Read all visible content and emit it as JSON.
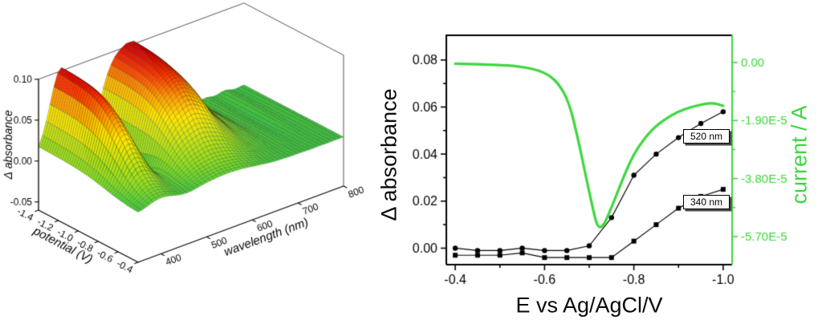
{
  "figure": {
    "background": "#ffffff",
    "description_left_panel": "3D surface of delta absorbance vs potential and wavelength",
    "description_right_panel": "Dual-axis plot of delta absorbance (340 nm, 520 nm) and current vs potential"
  },
  "chart_data": [
    {
      "type": "surface3d",
      "zlabel": "Δ absorbance",
      "xlabel": "potential (V)",
      "ylabel": "wavelength (nm)",
      "x_range": [
        -1.4,
        -0.4
      ],
      "x_ticks": [
        -1.4,
        -1.2,
        -1.0,
        -0.8,
        -0.6,
        -0.4
      ],
      "x_tick_labels": [
        "-1.4",
        "-1.2",
        "-1.0",
        "-0.8",
        "-0.6",
        "-0.4"
      ],
      "y_range": [
        350,
        800
      ],
      "y_ticks": [
        400,
        500,
        600,
        700,
        800
      ],
      "y_tick_labels": [
        "400",
        "500",
        "600",
        "700",
        "800"
      ],
      "z_range": [
        -0.06,
        0.1
      ],
      "z_ticks": [
        -0.05,
        0.0,
        0.05,
        0.1
      ],
      "z_tick_labels": [
        "-0.05",
        "0.00",
        "0.05",
        "0.10"
      ],
      "surface_model": {
        "description": "Gaussian absorbance bands growing sigmoidally at negative potentials; negative bleaching band near 460 nm; flat zero plane above 650 nm and at low overpotential",
        "peaks": [
          {
            "center_nm": 400,
            "sigma_nm": 26,
            "amplitude": 0.1,
            "onset_V": -0.72,
            "width_V": 0.13
          },
          {
            "center_nm": 545,
            "sigma_nm": 58,
            "amplitude": 0.105,
            "onset_V": -0.72,
            "width_V": 0.13
          },
          {
            "center_nm": 462,
            "sigma_nm": 14,
            "amplitude": -0.07,
            "onset_V": -0.85,
            "width_V": 0.1
          }
        ],
        "ripple": 0.002
      },
      "colormap": [
        [
          -0.06,
          "#2020c0"
        ],
        [
          -0.035,
          "#00a6ff"
        ],
        [
          -0.015,
          "#00e0d0"
        ],
        [
          0.0,
          "#3ecb3e"
        ],
        [
          0.018,
          "#8fdc1f"
        ],
        [
          0.04,
          "#cfe414"
        ],
        [
          0.058,
          "#ffe400"
        ],
        [
          0.075,
          "#ff9a00"
        ],
        [
          0.09,
          "#ff3c00"
        ],
        [
          0.104,
          "#d40000"
        ]
      ]
    },
    {
      "type": "line",
      "xlabel": "E vs  Ag/AgCl/V",
      "ylabel_left": "Δ absorbance",
      "ylabel_right": "current / A",
      "x_direction": "reversed",
      "xlim": [
        -0.38,
        -1.02
      ],
      "ylim_left": [
        -0.007,
        0.0905
      ],
      "ylim_right": [
        8.9e-06,
        -6.62e-05
      ],
      "x_ticks": [
        -0.4,
        -0.6,
        -0.8,
        -1.0
      ],
      "x_tick_labels": [
        "-0.4",
        "-0.6",
        "-0.8",
        "-1.0"
      ],
      "x_minor": [
        -0.5,
        -0.7,
        -0.9
      ],
      "y_ticks_left": [
        0.0,
        0.02,
        0.04,
        0.06,
        0.08
      ],
      "y_tick_labels_left": [
        "0.00",
        "0.02",
        "0.04",
        "0.06",
        "0.08"
      ],
      "y_minor_left": [
        0.01,
        0.03,
        0.05,
        0.07
      ],
      "y_ticks_right": [
        0,
        -1.9e-05,
        -3.8e-05,
        -5.7e-05
      ],
      "y_tick_labels_right": [
        "0.00",
        "-1.90E-5",
        "-3.80E-5",
        "-5.70E-5"
      ],
      "y_minor_right": [
        -9.5e-06,
        -2.85e-05,
        -4.75e-05
      ],
      "axis_color_right": "#3ed63e",
      "series": [
        {
          "name": "520 nm",
          "axis": "left",
          "marker": "circle",
          "color": "#000000",
          "x": [
            -0.4,
            -0.45,
            -0.5,
            -0.55,
            -0.6,
            -0.65,
            -0.7,
            -0.75,
            -0.8,
            -0.85,
            -0.9,
            -0.95,
            -1.0
          ],
          "y": [
            0.0,
            -0.001,
            -0.001,
            0.0,
            -0.001,
            -0.001,
            0.001,
            0.013,
            0.031,
            0.04,
            0.047,
            0.053,
            0.058
          ]
        },
        {
          "name": "340 nm",
          "axis": "left",
          "marker": "square",
          "color": "#000000",
          "x": [
            -0.4,
            -0.45,
            -0.5,
            -0.55,
            -0.6,
            -0.65,
            -0.7,
            -0.75,
            -0.8,
            -0.85,
            -0.9,
            -0.95,
            -1.0
          ],
          "y": [
            -0.003,
            -0.003,
            -0.003,
            -0.002,
            -0.004,
            -0.004,
            -0.004,
            -0.004,
            0.003,
            0.01,
            0.017,
            0.022,
            0.025
          ]
        },
        {
          "name": "current",
          "axis": "right",
          "marker": "none",
          "color": "#3ed63e",
          "line_width": 3.2,
          "x": [
            -0.4,
            -0.46,
            -0.52,
            -0.56,
            -0.6,
            -0.63,
            -0.655,
            -0.675,
            -0.695,
            -0.71,
            -0.716,
            -0.722,
            -0.728,
            -0.735,
            -0.75,
            -0.77,
            -0.79,
            -0.81,
            -0.84,
            -0.87,
            -0.9,
            -0.93,
            -0.96,
            -0.98,
            -1.0
          ],
          "y": [
            -4e-07,
            -6e-07,
            -1e-06,
            -1.6e-06,
            -3.2e-06,
            -6.5e-06,
            -1.3e-05,
            -2.5e-05,
            -3.9e-05,
            -4.9e-05,
            -5.25e-05,
            -5.4e-05,
            -5.38e-05,
            -5.25e-05,
            -4.75e-05,
            -4e-05,
            -3.3e-05,
            -2.75e-05,
            -2.2e-05,
            -1.85e-05,
            -1.6e-05,
            -1.45e-05,
            -1.35e-05,
            -1.33e-05,
            -1.42e-05
          ]
        }
      ],
      "annotations": [
        {
          "text": "520 nm",
          "x": -0.93,
          "y": 0.047
        },
        {
          "text": "340 nm",
          "x": -0.93,
          "y": 0.018
        }
      ]
    }
  ]
}
